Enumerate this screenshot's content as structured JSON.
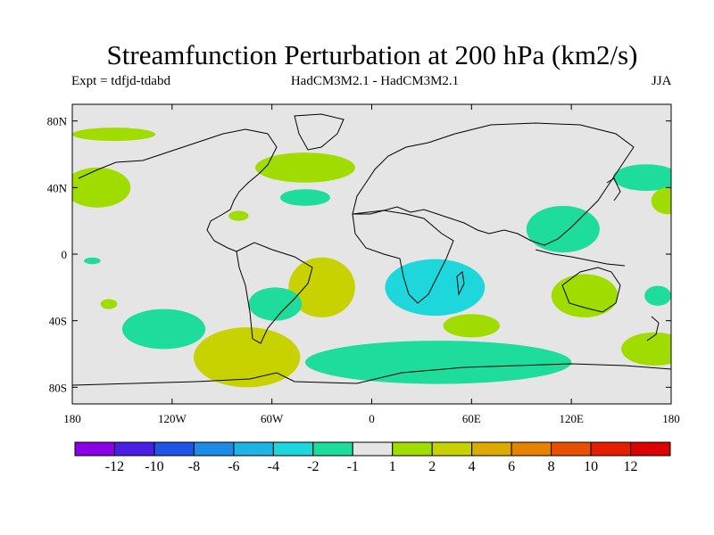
{
  "title": "Streamfunction Perturbation at 200 hPa (km2/s)",
  "subtitle_left": "Expt = tdfjd-tdabd",
  "subtitle_center": "HadCM3M2.1 - HadCM3M2.1",
  "subtitle_right": "JJA",
  "colors": {
    "land": "#000000",
    "neutral": "#e5e5e5",
    "frame": "#000000"
  },
  "axes": {
    "lon_ticks": [
      "180",
      "120W",
      "60W",
      "0",
      "60E",
      "120E",
      "180"
    ],
    "lat_ticks": [
      "80N",
      "40N",
      "0",
      "40S",
      "80S"
    ],
    "lon_range": [
      -180,
      180
    ],
    "lat_range": [
      -90,
      90
    ]
  },
  "colorbar": {
    "labels": [
      "-12",
      "-10",
      "-8",
      "-6",
      "-4",
      "-2",
      "-1",
      "1",
      "2",
      "4",
      "6",
      "8",
      "10",
      "12"
    ],
    "colors": [
      "#8c00e6",
      "#4b1ee6",
      "#1e55e6",
      "#1e8ce6",
      "#1eb4e6",
      "#1ed7dc",
      "#1edc9b",
      "#e5e5e5",
      "#a0dc00",
      "#c8d200",
      "#dcaa00",
      "#e68200",
      "#e65000",
      "#e61e00",
      "#dc0000"
    ]
  },
  "chart_data": {
    "type": "heatmap",
    "variable": "Streamfunction Perturbation at 200 hPa",
    "units": "km2/s",
    "season": "JJA",
    "levels": [
      -12,
      -10,
      -8,
      -6,
      -4,
      -2,
      -1,
      1,
      2,
      4,
      6,
      8,
      10,
      12
    ],
    "anomalies": [
      {
        "name": "north-pacific-arctic",
        "lon": -155,
        "lat": 72,
        "rx": 25,
        "ry": 4,
        "value": 1.5
      },
      {
        "name": "north-pacific-east",
        "lon": -165,
        "lat": 40,
        "rx": 20,
        "ry": 12,
        "value": 1.5
      },
      {
        "name": "north-atlantic",
        "lon": -40,
        "lat": 52,
        "rx": 30,
        "ry": 9,
        "value": 1.5
      },
      {
        "name": "mid-atlantic",
        "lon": -40,
        "lat": 34,
        "rx": 15,
        "ry": 5,
        "value": -1.5
      },
      {
        "name": "caribbean",
        "lon": -80,
        "lat": 23,
        "rx": 6,
        "ry": 3,
        "value": 1.5
      },
      {
        "name": "tropical-east-pacific",
        "lon": -168,
        "lat": -4,
        "rx": 5,
        "ry": 2,
        "value": -1.5
      },
      {
        "name": "south-pacific-small",
        "lon": -158,
        "lat": -30,
        "rx": 5,
        "ry": 3,
        "value": 1.5
      },
      {
        "name": "south-atlantic-west",
        "lon": -30,
        "lat": -20,
        "rx": 20,
        "ry": 18,
        "value": 2.5
      },
      {
        "name": "southern-africa-ocean",
        "lon": 38,
        "lat": -20,
        "rx": 30,
        "ry": 17,
        "value": -2.5
      },
      {
        "name": "brazil",
        "lon": -58,
        "lat": -30,
        "rx": 16,
        "ry": 10,
        "value": -1.5
      },
      {
        "name": "south-pacific-east",
        "lon": -125,
        "lat": -45,
        "rx": 25,
        "ry": 12,
        "value": -1.5
      },
      {
        "name": "southern-andes",
        "lon": -75,
        "lat": -62,
        "rx": 32,
        "ry": 18,
        "value": 2.5
      },
      {
        "name": "southern-ocean",
        "lon": 40,
        "lat": -65,
        "rx": 80,
        "ry": 13,
        "value": -1.5
      },
      {
        "name": "indian-ocean-south",
        "lon": 60,
        "lat": -43,
        "rx": 17,
        "ry": 7,
        "value": 1.5
      },
      {
        "name": "east-asia",
        "lon": 115,
        "lat": 15,
        "rx": 22,
        "ry": 14,
        "value": -1.5
      },
      {
        "name": "australia",
        "lon": 128,
        "lat": -25,
        "rx": 20,
        "ry": 13,
        "value": 1.5
      },
      {
        "name": "east-australia",
        "lon": 172,
        "lat": -25,
        "rx": 8,
        "ry": 6,
        "value": -1.5
      },
      {
        "name": "north-west-pacific",
        "lon": 165,
        "lat": 46,
        "rx": 20,
        "ry": 8,
        "value": -1.5
      },
      {
        "name": "central-north-pacific",
        "lon": 178,
        "lat": 32,
        "rx": 10,
        "ry": 8,
        "value": 1.5
      },
      {
        "name": "south-pacific-west",
        "lon": 170,
        "lat": -57,
        "rx": 20,
        "ry": 10,
        "value": 1.5
      }
    ]
  }
}
